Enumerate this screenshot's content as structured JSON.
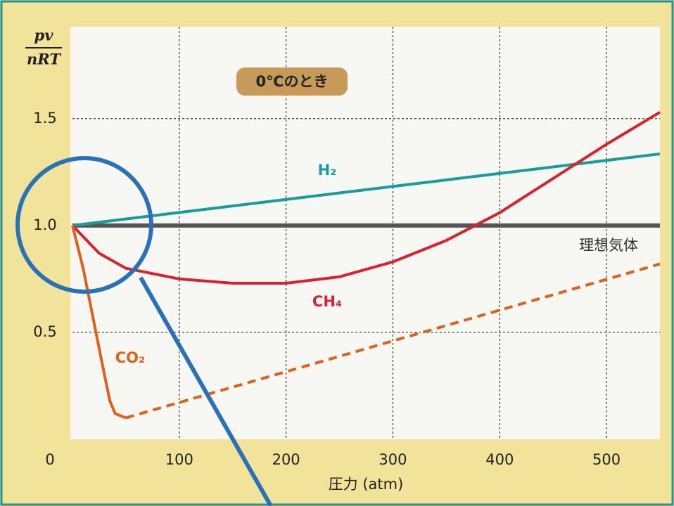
{
  "chart_data": {
    "type": "line",
    "title": "0℃のとき",
    "x_label": "圧力 (atm)",
    "y_label_numerator": "pv",
    "y_label_denominator": "nRT",
    "xlim": [
      0,
      550
    ],
    "xticks": [
      0,
      100,
      200,
      300,
      400,
      500
    ],
    "ylim": [
      0,
      1.93
    ],
    "yticks": [
      0.5,
      {
        "value": 1,
        "label": "1.0"
      },
      1.5
    ],
    "grid": true,
    "series": [
      {
        "name": "理想気体",
        "color": "#555555",
        "x": [
          0,
          550
        ],
        "values": [
          1,
          1
        ]
      },
      {
        "name": "H₂",
        "color": "#1a9c9c",
        "x": [
          0,
          550
        ],
        "values": [
          1,
          1.335
        ]
      },
      {
        "name": "CH₄",
        "color": "#d8232e",
        "x": [
          0,
          25,
          50,
          100,
          150,
          200,
          250,
          300,
          350,
          400,
          450,
          500,
          550
        ],
        "values": [
          1,
          0.87,
          0.8,
          0.75,
          0.73,
          0.73,
          0.76,
          0.83,
          0.93,
          1.06,
          1.22,
          1.38,
          1.53
        ]
      },
      {
        "name": "CO₂",
        "color": "#e0601a",
        "x": [
          0,
          10,
          20,
          30,
          35,
          40,
          50,
          550
        ],
        "values": [
          1,
          0.8,
          0.55,
          0.3,
          0.18,
          0.12,
          0.1,
          0.82
        ],
        "dashed_from": 50
      }
    ]
  }
}
